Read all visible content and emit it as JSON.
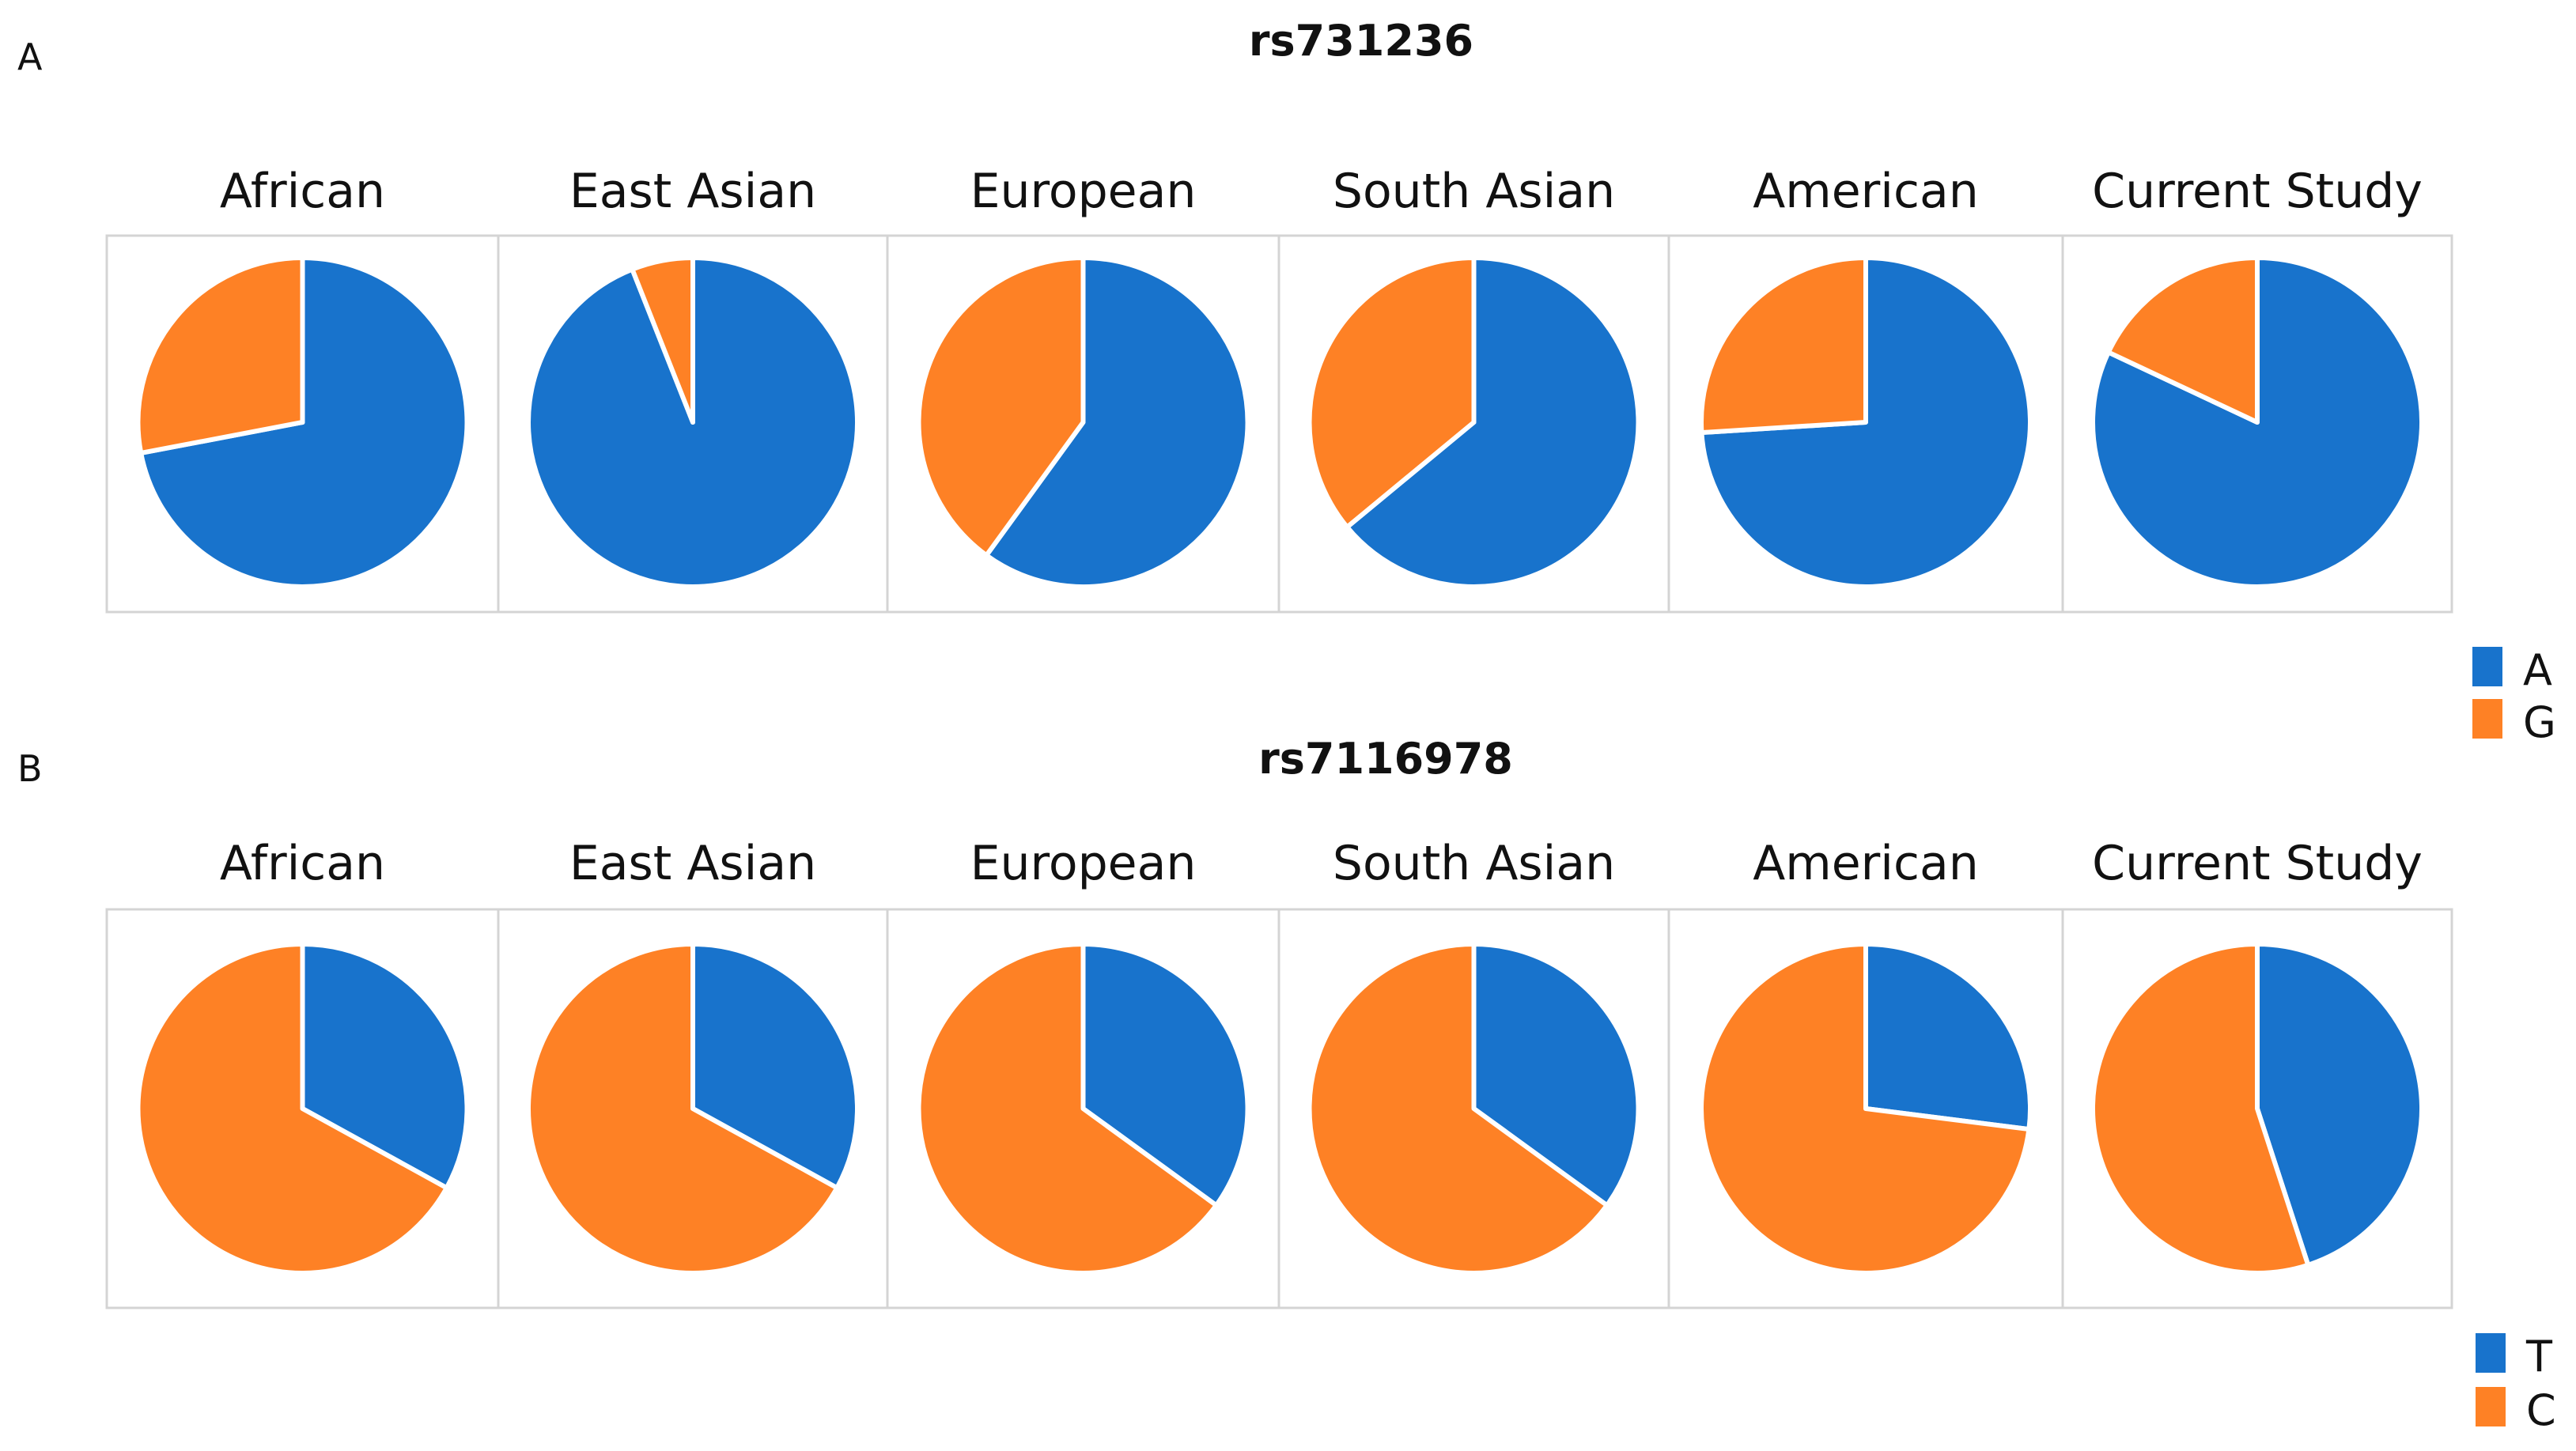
{
  "colors": {
    "blue": "#1873cc",
    "orange": "#fe8125"
  },
  "chart_data": [
    {
      "type": "pie",
      "panel": "A",
      "title": "rs731236",
      "legend": [
        {
          "label": "A",
          "color": "#1873cc"
        },
        {
          "label": "G",
          "color": "#fe8125"
        }
      ],
      "categories": [
        "African",
        "East Asian",
        "European",
        "South Asian",
        "American",
        "Current Study"
      ],
      "series": [
        {
          "name": "A",
          "values": [
            0.72,
            0.94,
            0.6,
            0.64,
            0.74,
            0.82
          ]
        },
        {
          "name": "G",
          "values": [
            0.28,
            0.06,
            0.4,
            0.36,
            0.26,
            0.18
          ]
        }
      ]
    },
    {
      "type": "pie",
      "panel": "B",
      "title": "rs7116978",
      "legend": [
        {
          "label": "T",
          "color": "#1873cc"
        },
        {
          "label": "C",
          "color": "#fe8125"
        }
      ],
      "categories": [
        "African",
        "East Asian",
        "European",
        "South Asian",
        "American",
        "Current Study"
      ],
      "series": [
        {
          "name": "T",
          "values": [
            0.33,
            0.33,
            0.35,
            0.35,
            0.27,
            0.45
          ]
        },
        {
          "name": "C",
          "values": [
            0.67,
            0.67,
            0.65,
            0.65,
            0.73,
            0.55
          ]
        }
      ]
    }
  ]
}
